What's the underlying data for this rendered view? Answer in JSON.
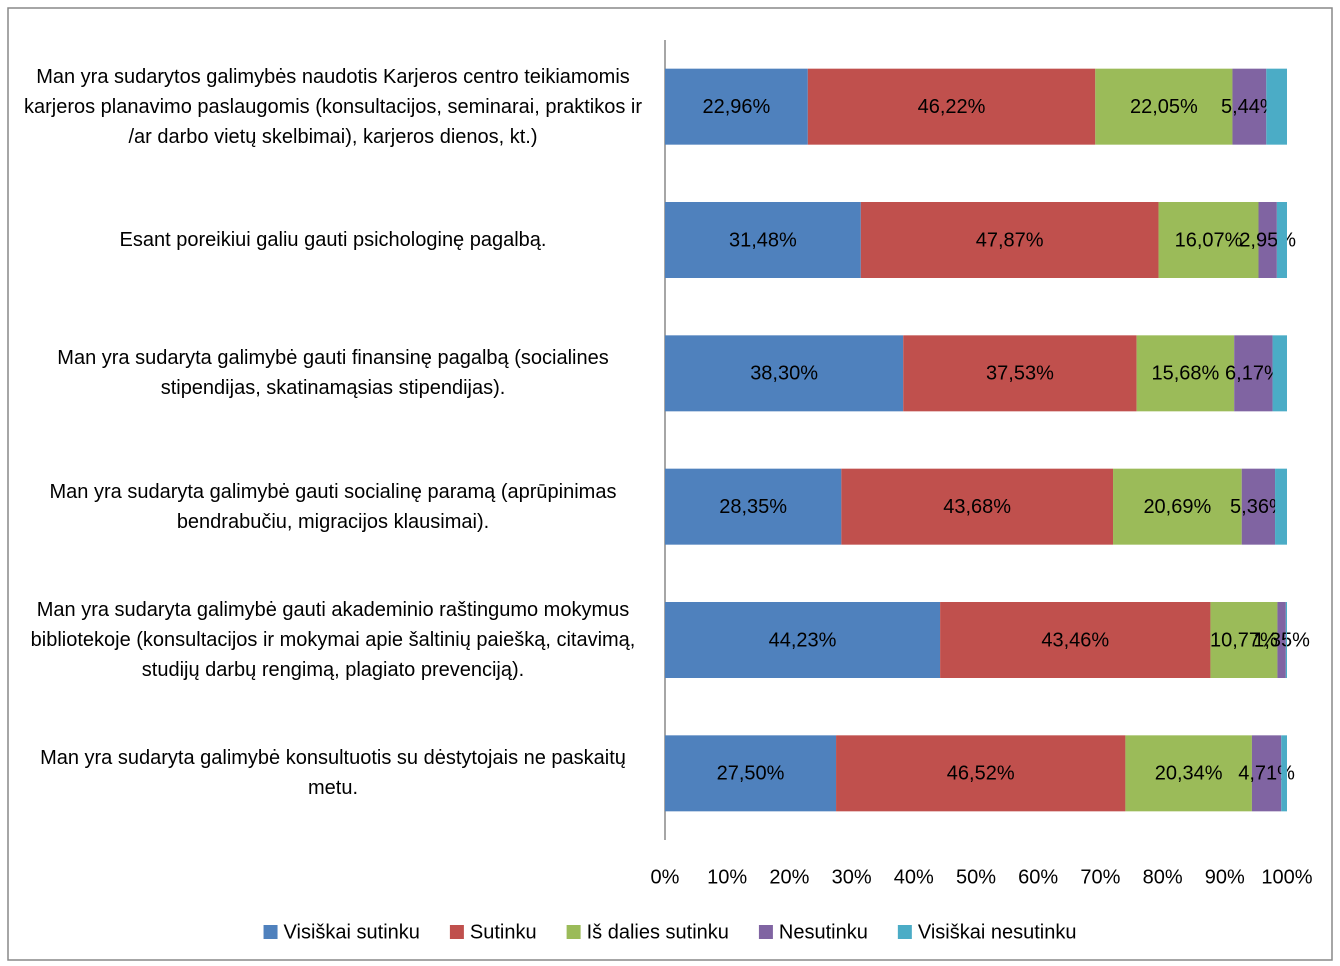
{
  "chart_data": {
    "type": "stacked_bar_horizontal",
    "categories": [
      "Man yra sudarytos galimybės naudotis   Karjeros centro teikiamomis karjeros planavimo paslaugomis (konsultacijos, seminarai, praktikos ir /ar darbo vietų skelbimai), karjeros dienos, kt.)",
      "Esant poreikiui galiu gauti psichologinę pagalbą.",
      "Man yra sudaryta galimybė gauti finansinę pagalbą (socialines stipendijas, skatinamąsias stipendijas).",
      "Man yra sudaryta galimybė gauti socialinę paramą (aprūpinimas bendrabučiu, migracijos klausimai).",
      "Man yra sudaryta galimybė gauti akademinio raštingumo mokymus bibliotekoje (konsultacijos ir mokymai apie šaltinių paiešką, citavimą, studijų darbų rengimą, plagiato prevenciją).",
      "Man yra sudaryta galimybė konsultuotis su dėstytojais ne paskaitų metu."
    ],
    "series": [
      {
        "name": "Visiškai sutinku",
        "color": "#4f81bd",
        "values": [
          22.96,
          31.48,
          38.3,
          28.35,
          44.23,
          27.5
        ],
        "value_labels": [
          "22,96%",
          "31,48%",
          "38,30%",
          "28,35%",
          "44,23%",
          "27,50%"
        ]
      },
      {
        "name": "Sutinku",
        "color": "#c0504d",
        "values": [
          46.22,
          47.87,
          37.53,
          43.68,
          43.46,
          46.52
        ],
        "value_labels": [
          "46,22%",
          "47,87%",
          "37,53%",
          "43,68%",
          "43,46%",
          "46,52%"
        ]
      },
      {
        "name": "Iš dalies sutinku",
        "color": "#9bbb59",
        "values": [
          22.05,
          16.07,
          15.68,
          20.69,
          10.77,
          20.34
        ],
        "value_labels": [
          "22,05%",
          "16,07%",
          "15,68%",
          "20,69%",
          "10,77%",
          "20,34%"
        ]
      },
      {
        "name": "Nesutinku",
        "color": "#8064a2",
        "values": [
          5.44,
          2.95,
          6.17,
          5.36,
          1.35,
          4.71
        ],
        "value_labels": [
          "5,44%",
          "2,95%",
          "6,17%",
          "5,36%",
          "1,35%",
          "4,71%"
        ]
      },
      {
        "name": "Visiškai nesutinku",
        "color": "#4bacc6",
        "values": [
          3.33,
          1.63,
          2.32,
          1.92,
          0.19,
          0.93
        ]
      }
    ],
    "xlim": [
      0,
      100
    ],
    "xticks": [
      {
        "value": 0,
        "label": "0%"
      },
      {
        "value": 10,
        "label": "10%"
      },
      {
        "value": 20,
        "label": "20%"
      },
      {
        "value": 30,
        "label": "30%"
      },
      {
        "value": 40,
        "label": "40%"
      },
      {
        "value": 50,
        "label": "50%"
      },
      {
        "value": 60,
        "label": "60%"
      },
      {
        "value": 70,
        "label": "70%"
      },
      {
        "value": 80,
        "label": "80%"
      },
      {
        "value": 90,
        "label": "90%"
      },
      {
        "value": 100,
        "label": "100%"
      }
    ],
    "legend": "bottom"
  }
}
